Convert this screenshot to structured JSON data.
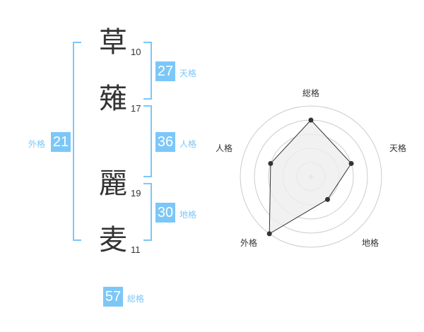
{
  "name": {
    "characters": [
      {
        "char": "草",
        "strokes": "10"
      },
      {
        "char": "薙",
        "strokes": "17"
      },
      {
        "char": "麗",
        "strokes": "19"
      },
      {
        "char": "麦",
        "strokes": "11"
      }
    ]
  },
  "fortunes": {
    "tenkaku": {
      "label": "天格",
      "value": "27"
    },
    "jinkaku": {
      "label": "人格",
      "value": "36"
    },
    "chikaku": {
      "label": "地格",
      "value": "30"
    },
    "gaikaku": {
      "label": "外格",
      "value": "21"
    },
    "soukaku": {
      "label": "総格",
      "value": "57"
    }
  },
  "colors": {
    "accent": "#7cc7f7",
    "text": "#333333",
    "radar_fill": "#eeeeee",
    "ring": "#cccccc"
  },
  "chart_data": {
    "type": "radar",
    "axes": [
      "総格",
      "天格",
      "地格",
      "外格",
      "人格"
    ],
    "values": [
      4,
      3,
      2,
      5,
      3
    ],
    "range": [
      0,
      5
    ],
    "rings": 5
  }
}
